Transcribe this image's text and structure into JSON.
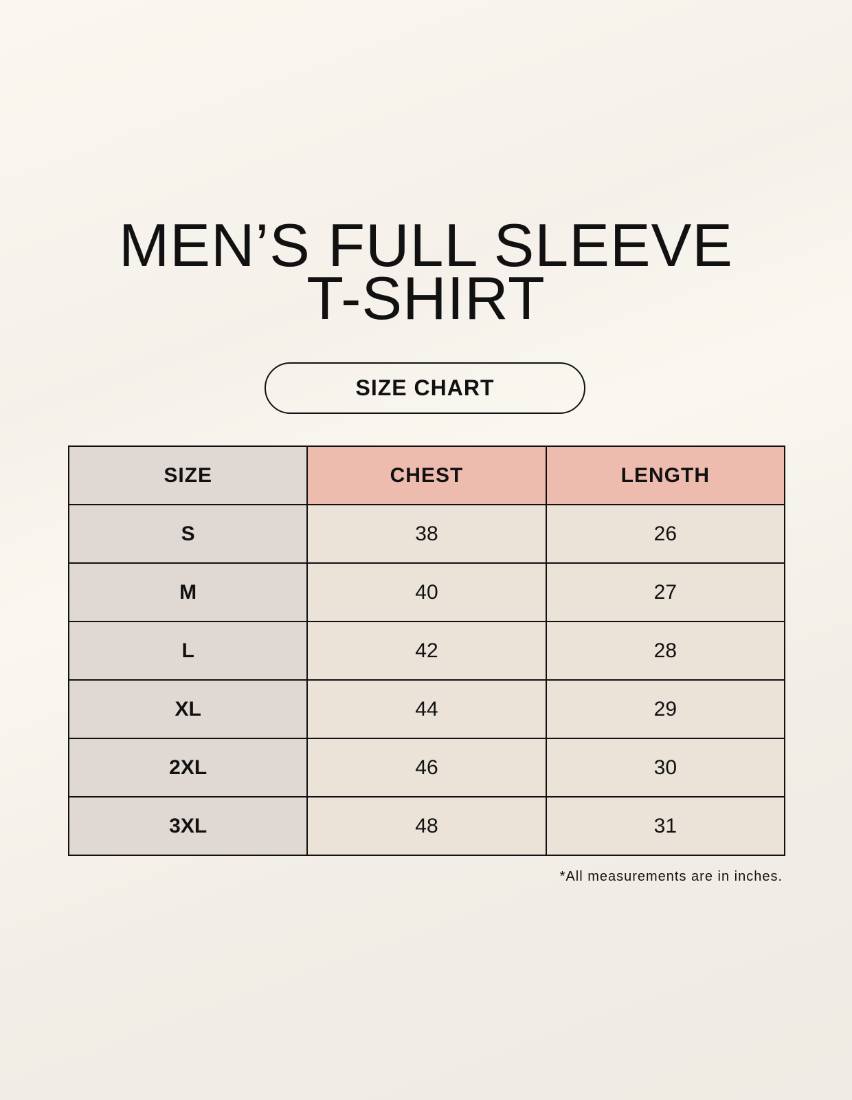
{
  "title": {
    "line1": "MEN’S FULL SLEEVE",
    "line2": "T-SHIRT"
  },
  "subtitle": "SIZE CHART",
  "table": {
    "headers": [
      "SIZE",
      "CHEST",
      "LENGTH"
    ],
    "rows": [
      [
        "S",
        "38",
        "26"
      ],
      [
        "M",
        "40",
        "27"
      ],
      [
        "L",
        "42",
        "28"
      ],
      [
        "XL",
        "44",
        "29"
      ],
      [
        "2XL",
        "46",
        "30"
      ],
      [
        "3XL",
        "48",
        "31"
      ]
    ]
  },
  "note": "*All measurements are in inches.",
  "colors": {
    "background": "#f8f5ee",
    "size_column": "#e0d9d3",
    "header_accent": "#eebcae",
    "cell": "#ebe3d8"
  }
}
